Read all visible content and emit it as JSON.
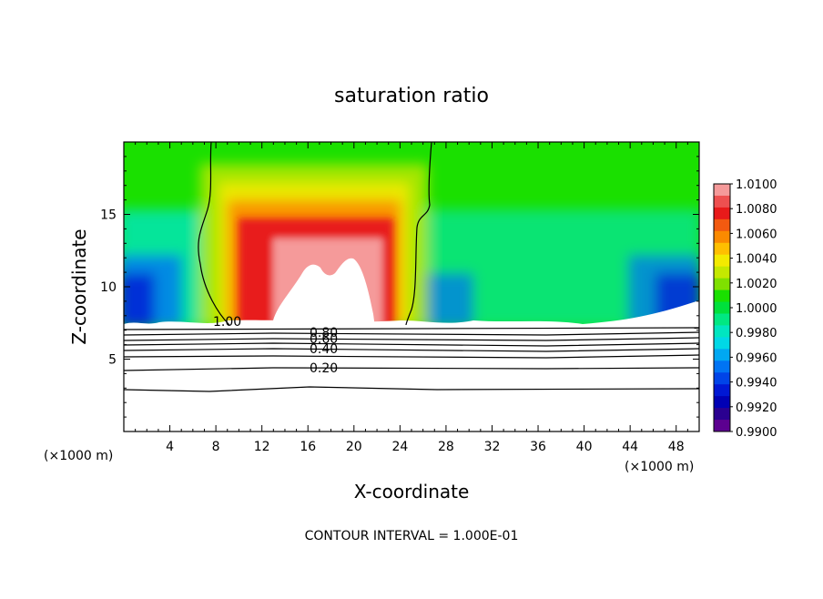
{
  "chart_data": {
    "type": "heatmap",
    "title": "saturation ratio",
    "xlabel": "X-coordinate",
    "ylabel": "Z-coordinate",
    "x_unit": "(×1000 m)",
    "y_unit": "(×1000 m)",
    "footer": "CONTOUR INTERVAL = 1.000E-01",
    "xlim": [
      0,
      50
    ],
    "ylim": [
      0,
      20
    ],
    "x_ticks": [
      4,
      8,
      12,
      16,
      20,
      24,
      28,
      32,
      36,
      40,
      44,
      48
    ],
    "y_ticks": [
      5,
      10,
      15
    ],
    "colorbar": {
      "labels": [
        "1.0100",
        "1.0080",
        "1.0060",
        "1.0040",
        "1.0020",
        "1.0000",
        "0.9980",
        "0.9960",
        "0.9940",
        "0.9920",
        "0.9900"
      ],
      "colors": [
        "#f59a9a",
        "#ee5050",
        "#e81a1a",
        "#f25a10",
        "#fb8a00",
        "#ffbf00",
        "#f3ea00",
        "#c4e800",
        "#7fe000",
        "#1ae000",
        "#00e03c",
        "#00e882",
        "#00e6c0",
        "#00d8e6",
        "#00a8f2",
        "#0074f4",
        "#0044e8",
        "#0018d4",
        "#0000b4",
        "#2a0090",
        "#5c0090"
      ]
    },
    "contour_labels": [
      "1.00",
      "0.80",
      "0.60",
      "0.40",
      "0.20"
    ]
  }
}
